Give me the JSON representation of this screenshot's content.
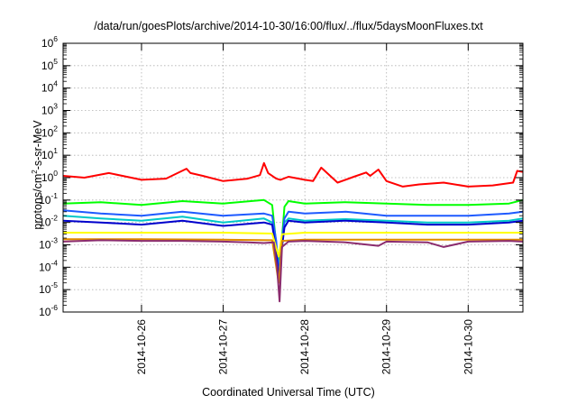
{
  "chart_data": {
    "type": "line",
    "title": "/data/run/goesPlots/archive/2014-10-30/16:00/flux/../flux/5daysMoonFluxes.txt",
    "xlabel": "Coordinated Universal Time (UTC)",
    "ylabel_prefix": "protons/cm",
    "ylabel_sup": "2",
    "ylabel_suffix": "-s-sr-MeV",
    "x_ticks": [
      "2014-10-26",
      "2014-10-27",
      "2014-10-28",
      "2014-10-29",
      "2014-10-30"
    ],
    "x_range_days": [
      25.04,
      30.67
    ],
    "y_scale": "log",
    "ylim_exponents": [
      -6,
      6
    ],
    "y_tick_base": "10",
    "y_tick_exponents": [
      "6",
      "5",
      "4",
      "3",
      "2",
      "1",
      "0",
      "-1",
      "-2",
      "-3",
      "-4",
      "-5",
      "-6"
    ],
    "grid": true,
    "series": [
      {
        "color": "#ff0000",
        "x": [
          25.04,
          25.3,
          25.6,
          26.0,
          26.3,
          26.55,
          26.6,
          26.75,
          27.0,
          27.3,
          27.45,
          27.5,
          27.55,
          27.65,
          27.7,
          27.8,
          28.0,
          28.1,
          28.2,
          28.4,
          28.6,
          28.75,
          28.8,
          28.9,
          29.0,
          29.2,
          29.4,
          29.7,
          30.0,
          30.3,
          30.55,
          30.6,
          30.67
        ],
        "y": [
          1.2,
          1.0,
          1.6,
          0.8,
          0.9,
          2.5,
          1.6,
          1.2,
          0.7,
          0.9,
          1.3,
          4.5,
          1.6,
          0.9,
          0.8,
          1.1,
          0.8,
          0.7,
          2.8,
          0.6,
          1.1,
          1.7,
          1.2,
          2.3,
          0.7,
          0.4,
          0.5,
          0.6,
          0.4,
          0.45,
          0.6,
          2.0,
          1.8
        ]
      },
      {
        "color": "#00ff00",
        "x": [
          25.04,
          25.5,
          26.0,
          26.5,
          27.0,
          27.5,
          27.6,
          27.65,
          27.68,
          27.72,
          27.75,
          27.8,
          28.0,
          28.5,
          29.0,
          29.5,
          30.0,
          30.5,
          30.67
        ],
        "y": [
          0.07,
          0.08,
          0.06,
          0.09,
          0.07,
          0.1,
          0.06,
          0.001,
          0.0002,
          0.002,
          0.05,
          0.09,
          0.07,
          0.08,
          0.07,
          0.06,
          0.06,
          0.07,
          0.1
        ]
      },
      {
        "color": "#00c8c8",
        "x": [
          25.04,
          25.5,
          26.0,
          26.5,
          27.0,
          27.5,
          27.6,
          27.65,
          27.68,
          27.72,
          27.75,
          27.8,
          28.0,
          28.5,
          29.0,
          29.5,
          30.0,
          30.5,
          30.67
        ],
        "y": [
          0.02,
          0.015,
          0.012,
          0.018,
          0.01,
          0.015,
          0.01,
          0.0008,
          0.0001,
          0.001,
          0.01,
          0.015,
          0.012,
          0.014,
          0.012,
          0.01,
          0.01,
          0.012,
          0.015
        ]
      },
      {
        "color": "#1e5aff",
        "x": [
          25.04,
          25.5,
          26.0,
          26.5,
          27.0,
          27.5,
          27.6,
          27.65,
          27.68,
          27.72,
          27.75,
          27.8,
          28.0,
          28.5,
          29.0,
          29.5,
          30.0,
          30.5,
          30.67
        ],
        "y": [
          0.035,
          0.025,
          0.02,
          0.03,
          0.02,
          0.025,
          0.02,
          0.0015,
          5e-05,
          0.0015,
          0.015,
          0.03,
          0.025,
          0.03,
          0.02,
          0.02,
          0.02,
          0.025,
          0.03
        ]
      },
      {
        "color": "#0000cc",
        "x": [
          25.04,
          25.5,
          26.0,
          26.5,
          27.0,
          27.5,
          27.6,
          27.65,
          27.68,
          27.72,
          27.75,
          27.8,
          28.0,
          28.5,
          29.0,
          29.5,
          30.0,
          30.5,
          30.67
        ],
        "y": [
          0.012,
          0.01,
          0.008,
          0.012,
          0.007,
          0.01,
          0.008,
          0.0005,
          3e-05,
          0.0008,
          0.006,
          0.012,
          0.01,
          0.012,
          0.01,
          0.008,
          0.008,
          0.01,
          0.012
        ]
      },
      {
        "color": "#ffff00",
        "x": [
          25.04,
          26.0,
          27.0,
          27.6,
          27.68,
          27.72,
          28.0,
          29.0,
          30.0,
          30.67
        ],
        "y": [
          0.0035,
          0.0035,
          0.0035,
          0.0032,
          0.0003,
          0.003,
          0.0035,
          0.0035,
          0.0035,
          0.0035
        ]
      },
      {
        "color": "#e08a00",
        "x": [
          25.04,
          26.0,
          27.0,
          27.6,
          27.68,
          27.72,
          28.0,
          29.0,
          30.0,
          30.67
        ],
        "y": [
          0.0018,
          0.0018,
          0.0017,
          0.0016,
          2e-05,
          0.0015,
          0.0017,
          0.0017,
          0.0017,
          0.0017
        ]
      },
      {
        "color": "#8b2c6e",
        "x": [
          25.04,
          25.5,
          26.0,
          26.5,
          27.0,
          27.3,
          27.5,
          27.62,
          27.66,
          27.69,
          27.72,
          27.8,
          28.0,
          28.5,
          28.9,
          29.0,
          29.5,
          29.7,
          30.0,
          30.5,
          30.67
        ],
        "y": [
          0.0014,
          0.0016,
          0.0015,
          0.0015,
          0.0014,
          0.0013,
          0.0012,
          0.0013,
          0.0001,
          3e-06,
          0.0008,
          0.0014,
          0.0015,
          0.0013,
          0.0009,
          0.0014,
          0.0013,
          0.0008,
          0.0014,
          0.0015,
          0.0014
        ]
      }
    ]
  }
}
